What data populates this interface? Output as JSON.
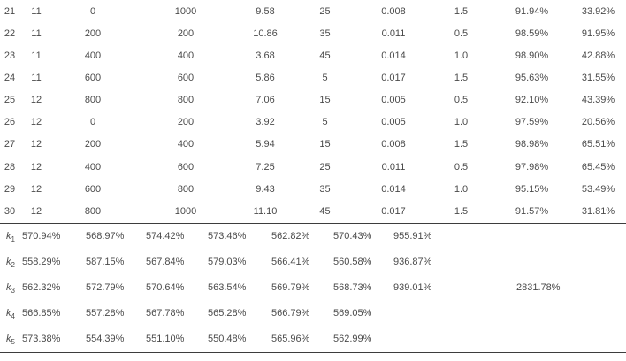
{
  "main_table": {
    "rows": [
      [
        "21",
        "11",
        "0",
        "1000",
        "9.58",
        "25",
        "0.008",
        "1.5",
        "91.94%",
        "33.92%"
      ],
      [
        "22",
        "11",
        "200",
        "200",
        "10.86",
        "35",
        "0.011",
        "0.5",
        "98.59%",
        "91.95%"
      ],
      [
        "23",
        "11",
        "400",
        "400",
        "3.68",
        "45",
        "0.014",
        "1.0",
        "98.90%",
        "42.88%"
      ],
      [
        "24",
        "11",
        "600",
        "600",
        "5.86",
        "5",
        "0.017",
        "1.5",
        "95.63%",
        "31.55%"
      ],
      [
        "25",
        "12",
        "800",
        "800",
        "7.06",
        "15",
        "0.005",
        "0.5",
        "92.10%",
        "43.39%"
      ],
      [
        "26",
        "12",
        "0",
        "200",
        "3.92",
        "5",
        "0.005",
        "1.0",
        "97.59%",
        "20.56%"
      ],
      [
        "27",
        "12",
        "200",
        "400",
        "5.94",
        "15",
        "0.008",
        "1.5",
        "98.98%",
        "65.51%"
      ],
      [
        "28",
        "12",
        "400",
        "600",
        "7.25",
        "25",
        "0.011",
        "0.5",
        "97.98%",
        "65.45%"
      ],
      [
        "29",
        "12",
        "600",
        "800",
        "9.43",
        "35",
        "0.014",
        "1.0",
        "95.15%",
        "53.49%"
      ],
      [
        "30",
        "12",
        "800",
        "1000",
        "11.10",
        "45",
        "0.017",
        "1.5",
        "91.57%",
        "31.81%"
      ]
    ]
  },
  "k_table": {
    "rows": [
      {
        "label_base": "k",
        "label_sub": "1",
        "values": [
          "570.94%",
          "568.97%",
          "574.42%",
          "573.46%",
          "562.82%",
          "570.43%",
          "955.91%",
          ""
        ]
      },
      {
        "label_base": "k",
        "label_sub": "2",
        "values": [
          "558.29%",
          "587.15%",
          "567.84%",
          "579.03%",
          "566.41%",
          "560.58%",
          "936.87%",
          ""
        ]
      },
      {
        "label_base": "k",
        "label_sub": "3",
        "values": [
          "562.32%",
          "572.79%",
          "570.64%",
          "563.54%",
          "569.79%",
          "568.73%",
          "939.01%",
          "2831.78%"
        ]
      },
      {
        "label_base": "k",
        "label_sub": "4",
        "values": [
          "566.85%",
          "557.28%",
          "567.78%",
          "565.28%",
          "566.79%",
          "569.05%",
          "",
          ""
        ]
      },
      {
        "label_base": "k",
        "label_sub": "5",
        "values": [
          "573.38%",
          "554.39%",
          "551.10%",
          "550.48%",
          "565.96%",
          "562.99%",
          "",
          ""
        ]
      }
    ]
  },
  "colors": {
    "text": "#4a4a4a",
    "line": "#3d3d3d",
    "background": "#ffffff"
  }
}
